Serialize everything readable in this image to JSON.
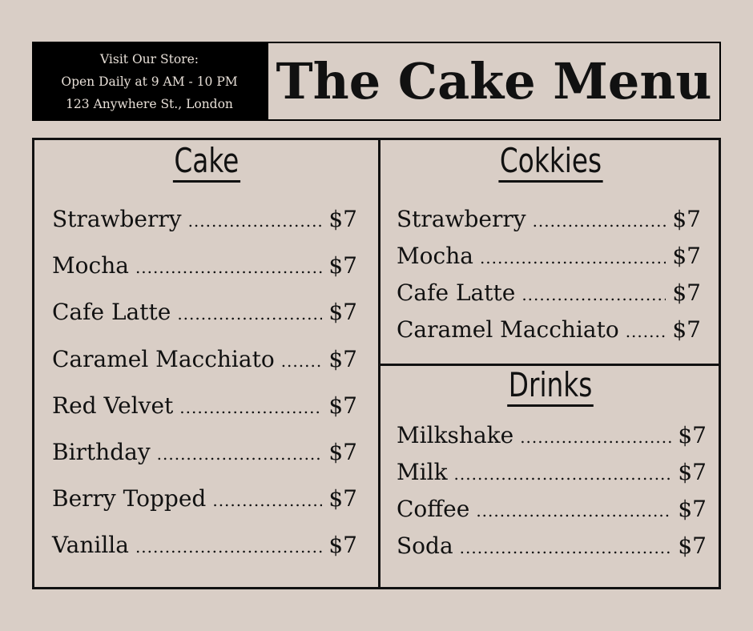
{
  "store": {
    "line1": "Visit Our Store:",
    "line2": "Open Daily at 9 AM - 10 PM",
    "line3": "123 Anywhere St., London"
  },
  "title": "The Cake Menu",
  "colors": {
    "background": "#d9cec6",
    "header_block": "#000000",
    "text": "#111111"
  },
  "sections": [
    {
      "heading": "Cake",
      "items": [
        {
          "name": "Strawberry",
          "price": "$7"
        },
        {
          "name": "Mocha",
          "price": "$7"
        },
        {
          "name": "Cafe Latte",
          "price": "$7"
        },
        {
          "name": "Caramel Macchiato",
          "price": "$7"
        },
        {
          "name": "Red Velvet",
          "price": "$7"
        },
        {
          "name": "Birthday",
          "price": "$7"
        },
        {
          "name": "Berry Topped",
          "price": "$7"
        },
        {
          "name": "Vanilla",
          "price": "$7"
        }
      ]
    },
    {
      "heading": "Cokkies",
      "items": [
        {
          "name": "Strawberry",
          "price": "$7"
        },
        {
          "name": "Mocha",
          "price": "$7"
        },
        {
          "name": "Cafe Latte",
          "price": "$7"
        },
        {
          "name": "Caramel Macchiato",
          "price": "$7"
        }
      ]
    },
    {
      "heading": "Drinks",
      "items": [
        {
          "name": "Milkshake",
          "price": "$7"
        },
        {
          "name": "Milk",
          "price": "$7"
        },
        {
          "name": "Coffee",
          "price": "$7"
        },
        {
          "name": "Soda",
          "price": "$7"
        }
      ]
    }
  ]
}
